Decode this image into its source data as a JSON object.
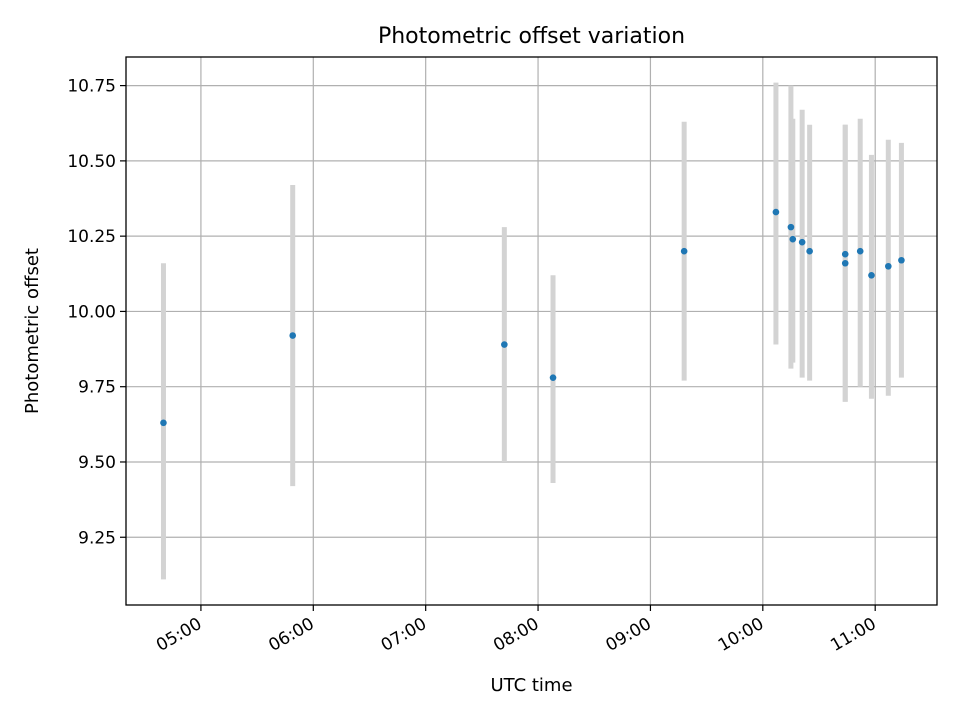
{
  "chart_data": {
    "type": "scatter",
    "title": "Photometric offset variation",
    "xlabel": "UTC time",
    "ylabel": "Photometric offset",
    "x_tick_labels": [
      "05:00",
      "06:00",
      "07:00",
      "08:00",
      "09:00",
      "10:00",
      "11:00"
    ],
    "y_tick_labels": [
      "9.25",
      "9.50",
      "9.75",
      "10.00",
      "10.25",
      "10.50",
      "10.75"
    ],
    "xlim": [
      "04:20",
      "11:33"
    ],
    "ylim": [
      9.025,
      10.845
    ],
    "grid": true,
    "series": [
      {
        "points": [
          {
            "x": "04:40",
            "y": 9.63,
            "yerr_low": 9.11,
            "yerr_high": 10.16
          },
          {
            "x": "05:49",
            "y": 9.92,
            "yerr_low": 9.42,
            "yerr_high": 10.42
          },
          {
            "x": "07:42",
            "y": 9.89,
            "yerr_low": 9.5,
            "yerr_high": 10.28
          },
          {
            "x": "08:08",
            "y": 9.78,
            "yerr_low": 9.43,
            "yerr_high": 10.12
          },
          {
            "x": "09:18",
            "y": 10.2,
            "yerr_low": 9.77,
            "yerr_high": 10.63
          },
          {
            "x": "10:07",
            "y": 10.33,
            "yerr_low": 9.89,
            "yerr_high": 10.76
          },
          {
            "x": "10:15",
            "y": 10.28,
            "yerr_low": 9.81,
            "yerr_high": 10.75
          },
          {
            "x": "10:16",
            "y": 10.24,
            "yerr_low": 9.83,
            "yerr_high": 10.64
          },
          {
            "x": "10:21",
            "y": 10.23,
            "yerr_low": 9.78,
            "yerr_high": 10.67
          },
          {
            "x": "10:25",
            "y": 10.2,
            "yerr_low": 9.77,
            "yerr_high": 10.62
          },
          {
            "x": "10:44",
            "y": 10.16,
            "yerr_low": 9.7,
            "yerr_high": 10.62
          },
          {
            "x": "10:44",
            "y": 10.19,
            "yerr_low": 9.7,
            "yerr_high": 10.62
          },
          {
            "x": "10:52",
            "y": 10.2,
            "yerr_low": 9.75,
            "yerr_high": 10.64
          },
          {
            "x": "10:58",
            "y": 10.12,
            "yerr_low": 9.71,
            "yerr_high": 10.52
          },
          {
            "x": "11:07",
            "y": 10.15,
            "yerr_low": 9.72,
            "yerr_high": 10.57
          },
          {
            "x": "11:14",
            "y": 10.17,
            "yerr_low": 9.78,
            "yerr_high": 10.56
          }
        ]
      }
    ],
    "colors": {
      "marker": "#1f77b4",
      "errorbar": "#d3d3d3",
      "grid": "#b0b0b0",
      "axes": "#000000"
    }
  }
}
